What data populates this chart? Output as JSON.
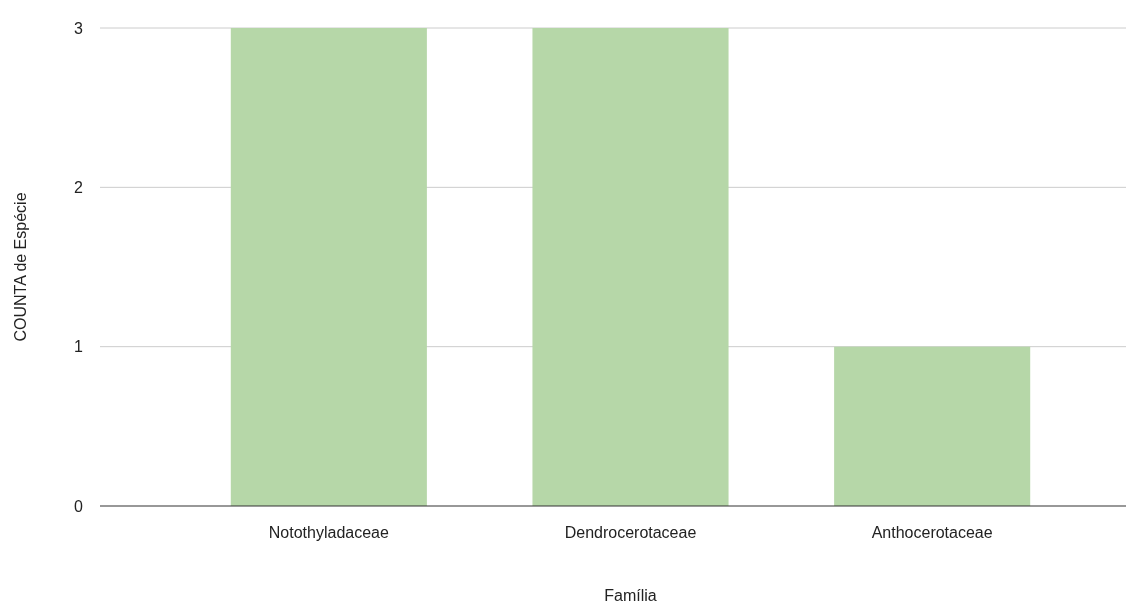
{
  "chart_data": {
    "type": "bar",
    "xlabel": "Família",
    "ylabel": "COUNTA de Espécie",
    "categories": [
      "Notothyladaceae",
      "Dendrocerotaceae",
      "Anthocerotaceae"
    ],
    "values": [
      3,
      3,
      1
    ],
    "color": "#b6d7a8",
    "ylim": [
      0,
      3
    ],
    "yticks": [
      0,
      1,
      2,
      3
    ],
    "grid": "y"
  }
}
